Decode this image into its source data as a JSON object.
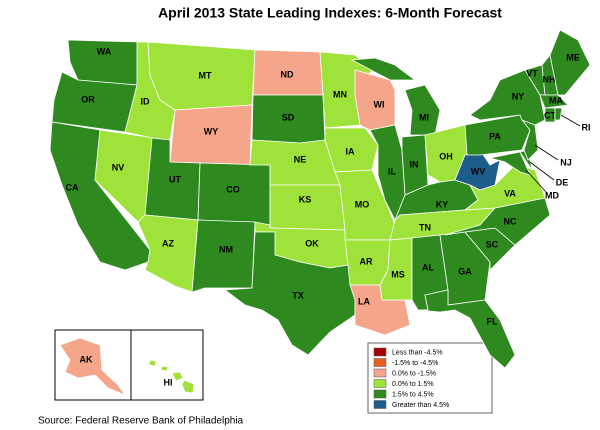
{
  "title": "April 2013 State Leading Indexes: 6-Month Forecast",
  "source": "Source: Federal Reserve Bank of Philadelphia",
  "legend": [
    {
      "label": "Less than -4.5%",
      "color": "#a30000"
    },
    {
      "label": "-1.5% to -4.5%",
      "color": "#e4601c"
    },
    {
      "label": "0.0% to -1.5%",
      "color": "#f5a58a"
    },
    {
      "label": "0.0% to  1.5%",
      "color": "#9fe23a"
    },
    {
      "label": "1.5% to  4.5%",
      "color": "#2e8a1f"
    },
    {
      "label": "Greater than 4.5%",
      "color": "#1c5d8c"
    }
  ],
  "states": [
    {
      "abbr": "WA",
      "color": "#2e8a1f"
    },
    {
      "abbr": "OR",
      "color": "#2e8a1f"
    },
    {
      "abbr": "CA",
      "color": "#2e8a1f"
    },
    {
      "abbr": "NV",
      "color": "#9fe23a"
    },
    {
      "abbr": "ID",
      "color": "#9fe23a"
    },
    {
      "abbr": "MT",
      "color": "#9fe23a"
    },
    {
      "abbr": "WY",
      "color": "#f5a58a"
    },
    {
      "abbr": "UT",
      "color": "#2e8a1f"
    },
    {
      "abbr": "CO",
      "color": "#2e8a1f"
    },
    {
      "abbr": "AZ",
      "color": "#9fe23a"
    },
    {
      "abbr": "NM",
      "color": "#2e8a1f"
    },
    {
      "abbr": "ND",
      "color": "#f5a58a"
    },
    {
      "abbr": "SD",
      "color": "#2e8a1f"
    },
    {
      "abbr": "NE",
      "color": "#9fe23a"
    },
    {
      "abbr": "KS",
      "color": "#9fe23a"
    },
    {
      "abbr": "OK",
      "color": "#9fe23a"
    },
    {
      "abbr": "TX",
      "color": "#2e8a1f"
    },
    {
      "abbr": "MN",
      "color": "#9fe23a"
    },
    {
      "abbr": "IA",
      "color": "#9fe23a"
    },
    {
      "abbr": "MO",
      "color": "#9fe23a"
    },
    {
      "abbr": "AR",
      "color": "#9fe23a"
    },
    {
      "abbr": "LA",
      "color": "#f5a58a"
    },
    {
      "abbr": "WI",
      "color": "#f5a58a"
    },
    {
      "abbr": "IL",
      "color": "#2e8a1f"
    },
    {
      "abbr": "MI",
      "color": "#2e8a1f"
    },
    {
      "abbr": "IN",
      "color": "#2e8a1f"
    },
    {
      "abbr": "OH",
      "color": "#9fe23a"
    },
    {
      "abbr": "KY",
      "color": "#2e8a1f"
    },
    {
      "abbr": "TN",
      "color": "#9fe23a"
    },
    {
      "abbr": "MS",
      "color": "#9fe23a"
    },
    {
      "abbr": "AL",
      "color": "#2e8a1f"
    },
    {
      "abbr": "GA",
      "color": "#2e8a1f"
    },
    {
      "abbr": "FL",
      "color": "#2e8a1f"
    },
    {
      "abbr": "SC",
      "color": "#2e8a1f"
    },
    {
      "abbr": "NC",
      "color": "#2e8a1f"
    },
    {
      "abbr": "VA",
      "color": "#9fe23a"
    },
    {
      "abbr": "WV",
      "color": "#1c5d8c"
    },
    {
      "abbr": "MD",
      "color": "#2e8a1f"
    },
    {
      "abbr": "DE",
      "color": "#2e8a1f"
    },
    {
      "abbr": "PA",
      "color": "#2e8a1f"
    },
    {
      "abbr": "NJ",
      "color": "#2e8a1f"
    },
    {
      "abbr": "NY",
      "color": "#2e8a1f"
    },
    {
      "abbr": "VT",
      "color": "#2e8a1f"
    },
    {
      "abbr": "NH",
      "color": "#2e8a1f"
    },
    {
      "abbr": "ME",
      "color": "#2e8a1f"
    },
    {
      "abbr": "MA",
      "color": "#2e8a1f"
    },
    {
      "abbr": "CT",
      "color": "#2e8a1f"
    },
    {
      "abbr": "RI",
      "color": "#2e8a1f"
    },
    {
      "abbr": "AK",
      "color": "#f5a58a"
    },
    {
      "abbr": "HI",
      "color": "#9fe23a"
    }
  ]
}
